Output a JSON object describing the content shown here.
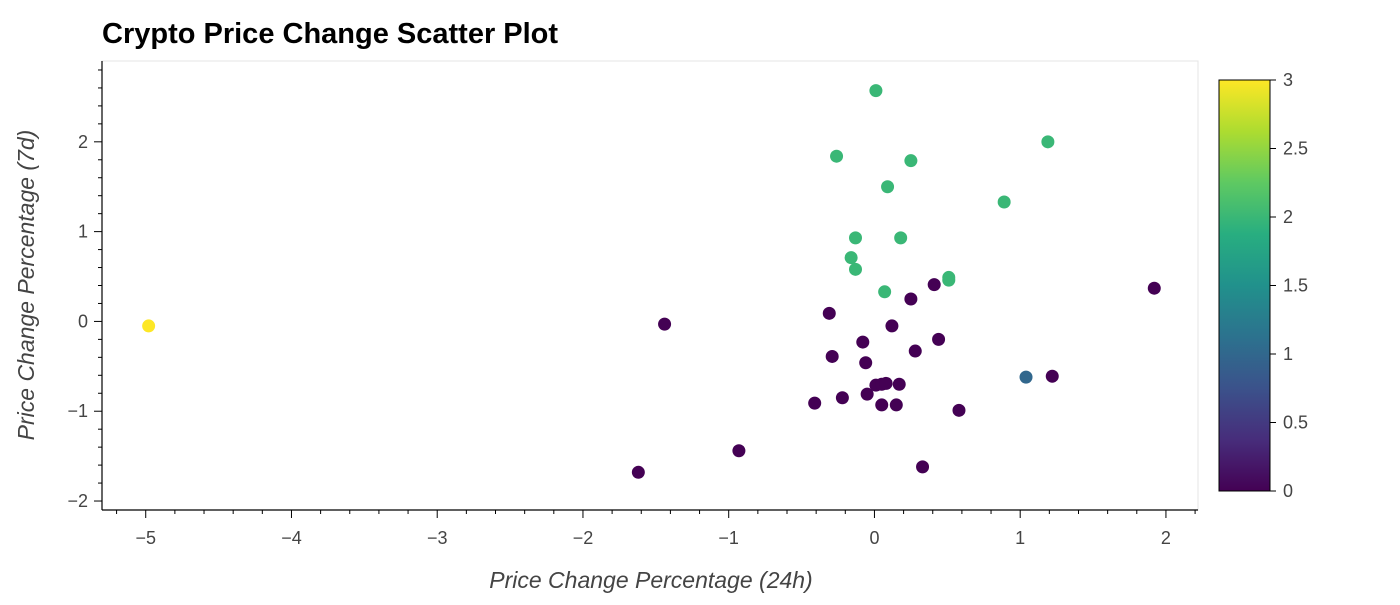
{
  "chart_data": {
    "type": "scatter",
    "title": "Crypto Price Change Scatter Plot",
    "xlabel": "Price Change Percentage (24h)",
    "ylabel": "Price Change Percentage (7d)",
    "xlim": [
      -5.3,
      2.22
    ],
    "ylim": [
      -2.1,
      2.9
    ],
    "xticks": [
      -5,
      -4,
      -3,
      -2,
      -1,
      0,
      1,
      2
    ],
    "xtick_labels": [
      "−5",
      "−4",
      "−3",
      "−2",
      "−1",
      "0",
      "1",
      "2"
    ],
    "yticks": [
      -2,
      -1,
      0,
      1,
      2
    ],
    "ytick_labels": [
      "−2",
      "−1",
      "0",
      "1",
      "2"
    ],
    "grid": false,
    "colorbar": {
      "ticks": [
        0,
        0.5,
        1,
        1.5,
        2,
        2.5,
        3
      ],
      "labels": [
        "0",
        "0.5",
        "1",
        "1.5",
        "2",
        "2.5",
        "3"
      ],
      "range": [
        0,
        3
      ],
      "colormap": "viridis"
    },
    "points": [
      {
        "x": -4.98,
        "y": -0.05,
        "c": 3
      },
      {
        "x": -1.62,
        "y": -1.68,
        "c": 0
      },
      {
        "x": -1.44,
        "y": -0.03,
        "c": 0
      },
      {
        "x": -0.93,
        "y": -1.44,
        "c": 0
      },
      {
        "x": -0.41,
        "y": -0.91,
        "c": 0
      },
      {
        "x": -0.31,
        "y": 0.09,
        "c": 0
      },
      {
        "x": -0.29,
        "y": -0.39,
        "c": 0
      },
      {
        "x": -0.22,
        "y": -0.85,
        "c": 0
      },
      {
        "x": -0.08,
        "y": -0.23,
        "c": 0
      },
      {
        "x": -0.06,
        "y": -0.46,
        "c": 0
      },
      {
        "x": -0.05,
        "y": -0.81,
        "c": 0
      },
      {
        "x": 0.01,
        "y": -0.71,
        "c": 0
      },
      {
        "x": 0.05,
        "y": -0.93,
        "c": 0
      },
      {
        "x": 0.05,
        "y": -0.7,
        "c": 0
      },
      {
        "x": 0.08,
        "y": -0.69,
        "c": 0
      },
      {
        "x": 0.12,
        "y": -0.05,
        "c": 0
      },
      {
        "x": 0.15,
        "y": -0.93,
        "c": 0
      },
      {
        "x": 0.17,
        "y": -0.7,
        "c": 0
      },
      {
        "x": 0.25,
        "y": 0.25,
        "c": 0
      },
      {
        "x": 0.28,
        "y": -0.33,
        "c": 0
      },
      {
        "x": 0.33,
        "y": -1.62,
        "c": 0
      },
      {
        "x": 0.41,
        "y": 0.41,
        "c": 0
      },
      {
        "x": 0.44,
        "y": -0.2,
        "c": 0
      },
      {
        "x": 0.58,
        "y": -0.99,
        "c": 0
      },
      {
        "x": 1.22,
        "y": -0.61,
        "c": 0
      },
      {
        "x": 1.92,
        "y": 0.37,
        "c": 0
      },
      {
        "x": 1.04,
        "y": -0.62,
        "c": 1
      },
      {
        "x": 0.01,
        "y": 2.57,
        "c": 2
      },
      {
        "x": 1.19,
        "y": 2.0,
        "c": 2
      },
      {
        "x": -0.26,
        "y": 1.84,
        "c": 2
      },
      {
        "x": 0.25,
        "y": 1.79,
        "c": 2
      },
      {
        "x": 0.09,
        "y": 1.5,
        "c": 2
      },
      {
        "x": 0.89,
        "y": 1.33,
        "c": 2
      },
      {
        "x": -0.13,
        "y": 0.93,
        "c": 2
      },
      {
        "x": 0.18,
        "y": 0.93,
        "c": 2
      },
      {
        "x": -0.16,
        "y": 0.71,
        "c": 2
      },
      {
        "x": -0.13,
        "y": 0.58,
        "c": 2
      },
      {
        "x": 0.51,
        "y": 0.49,
        "c": 2
      },
      {
        "x": 0.51,
        "y": 0.46,
        "c": 2
      },
      {
        "x": 0.07,
        "y": 0.33,
        "c": 2
      }
    ]
  }
}
